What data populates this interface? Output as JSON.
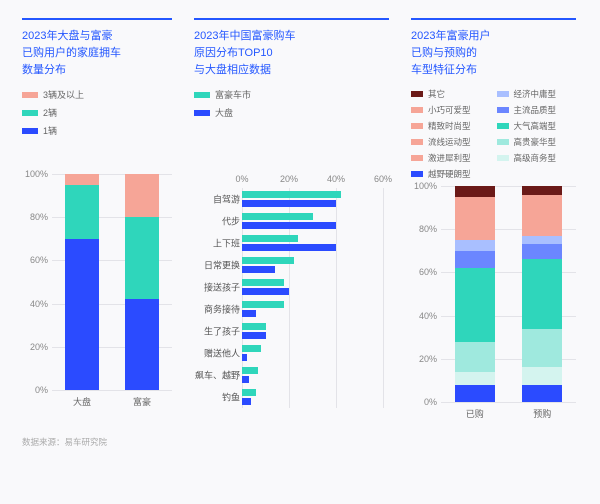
{
  "source": "数据来源：易车研究院",
  "colors": {
    "blue": "#2b4bff",
    "teal": "#2fd6bb",
    "salmon": "#f6a597",
    "darkred": "#6b1a18",
    "midblue": "#6b86ff",
    "lightblue": "#a9bfff",
    "lightteal": "#9fe9de",
    "paleteal": "#d4f4ef",
    "grid": "#e3e3e8"
  },
  "chartA": {
    "title": "2023年大盘与富豪\n已购用户的家庭拥车\n数量分布",
    "legend": [
      {
        "label": "3辆及以上",
        "colorKey": "salmon"
      },
      {
        "label": "2辆",
        "colorKey": "teal"
      },
      {
        "label": "1辆",
        "colorKey": "blue"
      }
    ],
    "yticks": [
      0,
      20,
      40,
      60,
      80,
      100
    ],
    "categories": [
      "大盘",
      "富豪"
    ],
    "stacks": [
      [
        {
          "v": 70,
          "c": "blue"
        },
        {
          "v": 25,
          "c": "teal"
        },
        {
          "v": 5,
          "c": "salmon"
        }
      ],
      [
        {
          "v": 42,
          "c": "blue"
        },
        {
          "v": 38,
          "c": "teal"
        },
        {
          "v": 20,
          "c": "salmon"
        }
      ]
    ]
  },
  "chartB": {
    "title": "2023年中国富豪购车\n原因分布TOP10\n与大盘相应数据",
    "legend": [
      {
        "label": "富豪车市",
        "colorKey": "teal"
      },
      {
        "label": "大盘",
        "colorKey": "blue"
      }
    ],
    "xticks": [
      0,
      20,
      40,
      60
    ],
    "xmax": 60,
    "rows": [
      {
        "label": "自驾游",
        "teal": 42,
        "blue": 40
      },
      {
        "label": "代步",
        "teal": 30,
        "blue": 40
      },
      {
        "label": "上下班",
        "teal": 24,
        "blue": 40
      },
      {
        "label": "日常更换",
        "teal": 22,
        "blue": 14
      },
      {
        "label": "接送孩子",
        "teal": 18,
        "blue": 20
      },
      {
        "label": "商务接待",
        "teal": 18,
        "blue": 6
      },
      {
        "label": "生了孩子",
        "teal": 10,
        "blue": 10
      },
      {
        "label": "赠送他人",
        "teal": 8,
        "blue": 2
      },
      {
        "label": "飙车、越野",
        "teal": 7,
        "blue": 3
      },
      {
        "label": "钓鱼",
        "teal": 6,
        "blue": 4
      }
    ]
  },
  "chartC": {
    "title": "2023年富豪用户\n已购与预购的\n车型特征分布",
    "legend": [
      {
        "label": "其它",
        "colorKey": "darkred"
      },
      {
        "label": "经济中庸型",
        "colorKey": "lightblue"
      },
      {
        "label": "小巧可爱型",
        "colorKey": "salmon"
      },
      {
        "label": "主流品质型",
        "colorKey": "midblue"
      },
      {
        "label": "精致时尚型",
        "colorKey": "salmon"
      },
      {
        "label": "大气高端型",
        "colorKey": "teal"
      },
      {
        "label": "流线运动型",
        "colorKey": "salmon"
      },
      {
        "label": "高贵豪华型",
        "colorKey": "lightteal"
      },
      {
        "label": "激进犀利型",
        "colorKey": "salmon"
      },
      {
        "label": "高级商务型",
        "colorKey": "paleteal"
      },
      {
        "label": "越野硬朗型",
        "colorKey": "blue"
      }
    ],
    "yticks": [
      0,
      20,
      40,
      60,
      80,
      100
    ],
    "categories": [
      "已购",
      "预购"
    ],
    "stacks": [
      [
        {
          "v": 8,
          "c": "blue"
        },
        {
          "v": 6,
          "c": "paleteal"
        },
        {
          "v": 14,
          "c": "lightteal"
        },
        {
          "v": 34,
          "c": "teal"
        },
        {
          "v": 8,
          "c": "midblue"
        },
        {
          "v": 5,
          "c": "lightblue"
        },
        {
          "v": 20,
          "c": "salmon"
        },
        {
          "v": 5,
          "c": "darkred"
        }
      ],
      [
        {
          "v": 8,
          "c": "blue"
        },
        {
          "v": 8,
          "c": "paleteal"
        },
        {
          "v": 18,
          "c": "lightteal"
        },
        {
          "v": 32,
          "c": "teal"
        },
        {
          "v": 7,
          "c": "midblue"
        },
        {
          "v": 4,
          "c": "lightblue"
        },
        {
          "v": 19,
          "c": "salmon"
        },
        {
          "v": 4,
          "c": "darkred"
        }
      ]
    ]
  }
}
